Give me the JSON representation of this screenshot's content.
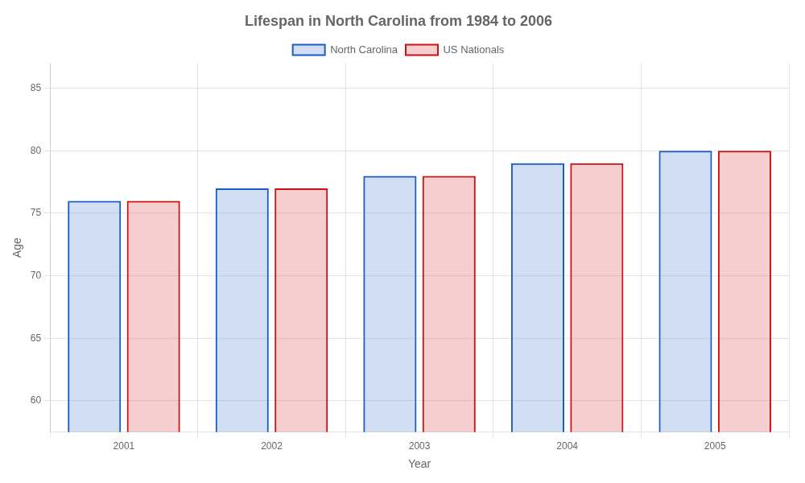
{
  "chart_data": {
    "type": "bar",
    "title": "Lifespan in North Carolina from 1984 to 2006",
    "x_label": "Year",
    "y_label": "Age",
    "categories": [
      "2001",
      "2002",
      "2003",
      "2004",
      "2005"
    ],
    "series": [
      {
        "name": "North Carolina",
        "color": "#1a5bc4",
        "values": [
          76,
          77,
          78,
          79,
          80
        ]
      },
      {
        "name": "US Nationals",
        "color": "#cc1111",
        "values": [
          76,
          77,
          78,
          79,
          80
        ]
      }
    ],
    "ylim": [
      57.5,
      87
    ],
    "yticks": [
      60,
      65,
      70,
      75,
      80,
      85
    ],
    "grid": true,
    "legend": "top"
  }
}
